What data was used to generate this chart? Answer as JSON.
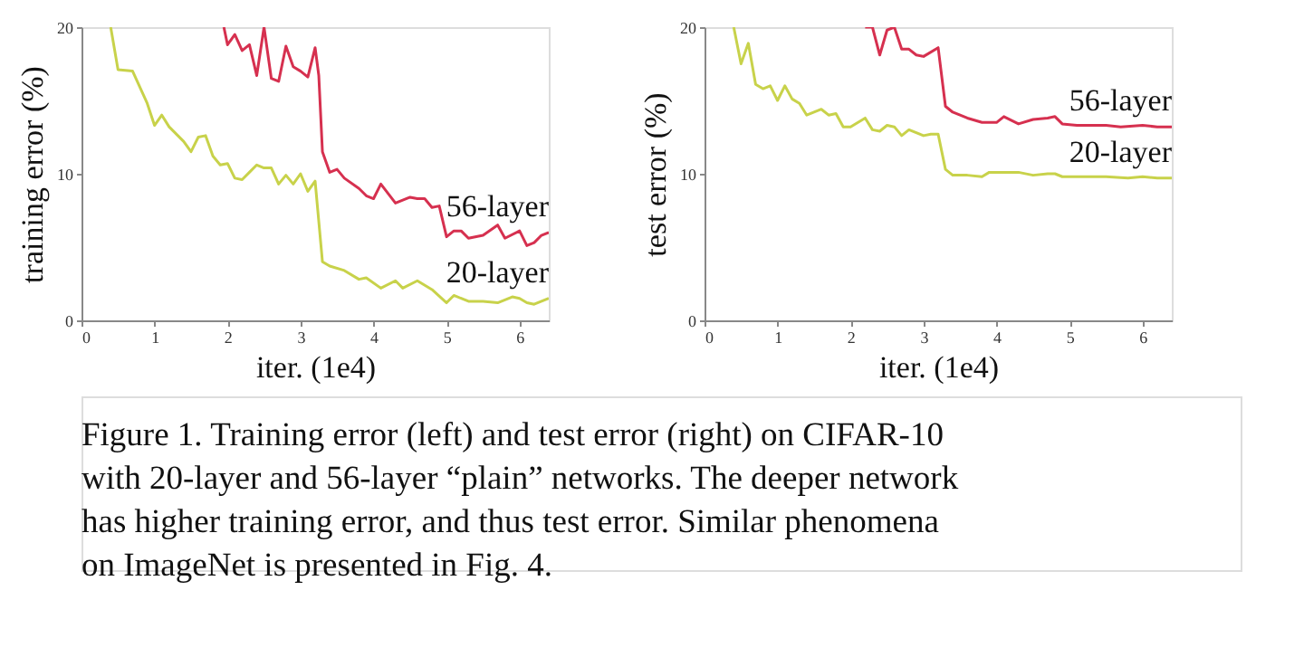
{
  "chart_data": [
    {
      "type": "line",
      "xlabel": "iter. (1e4)",
      "ylabel": "training error (%)",
      "xlim": [
        0,
        6.4
      ],
      "xticks": [
        0,
        1,
        2,
        3,
        4,
        5,
        6
      ],
      "ylim": [
        0,
        20
      ],
      "yticks": [
        0,
        10,
        20
      ],
      "grid": false,
      "legend": false,
      "annotations": [
        "Figure 1. Training error (left) and test error (right) on CIFAR-10\nwith 20-layer and 56-layer “plain” networks. The deeper network\nhas higher training error, and thus test error. Similar phenomena\non ImageNet is presented in Fig. 4."
      ],
      "series": [
        {
          "name": "56-layer",
          "color": "#d6304f",
          "x": [
            1.95,
            2.0,
            2.1,
            2.2,
            2.3,
            2.4,
            2.5,
            2.6,
            2.7,
            2.8,
            2.9,
            3.0,
            3.1,
            3.2,
            3.25,
            3.3,
            3.4,
            3.5,
            3.6,
            3.8,
            3.9,
            4.0,
            4.1,
            4.3,
            4.5,
            4.6,
            4.7,
            4.8,
            4.9,
            5.0,
            5.1,
            5.2,
            5.3,
            5.5,
            5.7,
            5.8,
            6.0,
            6.1,
            6.2,
            6.3,
            6.4
          ],
          "values": [
            20,
            18.8,
            19.5,
            18.4,
            18.8,
            16.7,
            20,
            16.5,
            16.3,
            18.7,
            17.3,
            17.0,
            16.6,
            18.6,
            16.7,
            11.5,
            10.1,
            10.3,
            9.7,
            9.0,
            8.5,
            8.3,
            9.3,
            8.0,
            8.4,
            8.3,
            8.3,
            7.7,
            7.8,
            5.7,
            6.1,
            6.1,
            5.6,
            5.8,
            6.5,
            5.6,
            6.1,
            5.1,
            5.3,
            5.8,
            6.0
          ]
        },
        {
          "name": "20-layer",
          "color": "#c8d24a",
          "x": [
            0.4,
            0.5,
            0.7,
            0.9,
            1.0,
            1.1,
            1.2,
            1.4,
            1.5,
            1.6,
            1.7,
            1.8,
            1.9,
            2.0,
            2.1,
            2.2,
            2.3,
            2.4,
            2.5,
            2.6,
            2.7,
            2.8,
            2.9,
            3.0,
            3.1,
            3.2,
            3.3,
            3.4,
            3.6,
            3.8,
            3.9,
            4.1,
            4.3,
            4.4,
            4.6,
            4.8,
            5.0,
            5.1,
            5.3,
            5.5,
            5.7,
            5.9,
            6.0,
            6.1,
            6.2,
            6.4
          ],
          "values": [
            20,
            17.1,
            17,
            14.8,
            13.3,
            14,
            13.2,
            12.2,
            11.5,
            12.5,
            12.6,
            11.2,
            10.6,
            10.7,
            9.7,
            9.6,
            10.1,
            10.6,
            10.4,
            10.4,
            9.3,
            9.9,
            9.3,
            10.0,
            8.8,
            9.5,
            4.0,
            3.7,
            3.4,
            2.8,
            2.9,
            2.2,
            2.7,
            2.2,
            2.7,
            2.1,
            1.2,
            1.7,
            1.3,
            1.3,
            1.2,
            1.6,
            1.5,
            1.2,
            1.1,
            1.5
          ]
        }
      ]
    },
    {
      "type": "line",
      "xlabel": "iter. (1e4)",
      "ylabel": "test error (%)",
      "xlim": [
        0,
        6.4
      ],
      "xticks": [
        0,
        1,
        2,
        3,
        4,
        5,
        6
      ],
      "ylim": [
        0,
        20
      ],
      "yticks": [
        0,
        10,
        20
      ],
      "grid": false,
      "legend": false,
      "series": [
        {
          "name": "56-layer",
          "color": "#d6304f",
          "x": [
            2.2,
            2.3,
            2.4,
            2.5,
            2.6,
            2.7,
            2.8,
            2.9,
            3.0,
            3.2,
            3.3,
            3.4,
            3.6,
            3.8,
            4.0,
            4.1,
            4.3,
            4.5,
            4.7,
            4.8,
            4.9,
            5.1,
            5.3,
            5.5,
            5.7,
            6.0,
            6.2,
            6.4
          ],
          "values": [
            20,
            20,
            18.1,
            19.8,
            20,
            18.5,
            18.5,
            18.1,
            18.0,
            18.6,
            14.6,
            14.2,
            13.8,
            13.5,
            13.5,
            13.9,
            13.4,
            13.7,
            13.8,
            13.9,
            13.4,
            13.3,
            13.3,
            13.3,
            13.2,
            13.3,
            13.2,
            13.2
          ]
        },
        {
          "name": "20-layer",
          "color": "#c8d24a",
          "x": [
            0.4,
            0.5,
            0.6,
            0.7,
            0.8,
            0.9,
            1.0,
            1.1,
            1.2,
            1.3,
            1.4,
            1.6,
            1.7,
            1.8,
            1.9,
            2.0,
            2.2,
            2.3,
            2.4,
            2.5,
            2.6,
            2.7,
            2.8,
            3.0,
            3.1,
            3.2,
            3.3,
            3.4,
            3.6,
            3.8,
            3.9,
            4.1,
            4.3,
            4.5,
            4.7,
            4.8,
            4.9,
            5.1,
            5.3,
            5.5,
            5.8,
            6.0,
            6.2,
            6.4
          ],
          "values": [
            20,
            17.5,
            18.9,
            16.1,
            15.8,
            16.0,
            15.0,
            16.0,
            15.1,
            14.8,
            14.0,
            14.4,
            14.0,
            14.1,
            13.2,
            13.2,
            13.8,
            13.0,
            12.9,
            13.3,
            13.2,
            12.6,
            13.0,
            12.6,
            12.7,
            12.7,
            10.3,
            9.9,
            9.9,
            9.8,
            10.1,
            10.1,
            10.1,
            9.9,
            10.0,
            10.0,
            9.8,
            9.8,
            9.8,
            9.8,
            9.7,
            9.8,
            9.7,
            9.7
          ]
        }
      ]
    }
  ]
}
